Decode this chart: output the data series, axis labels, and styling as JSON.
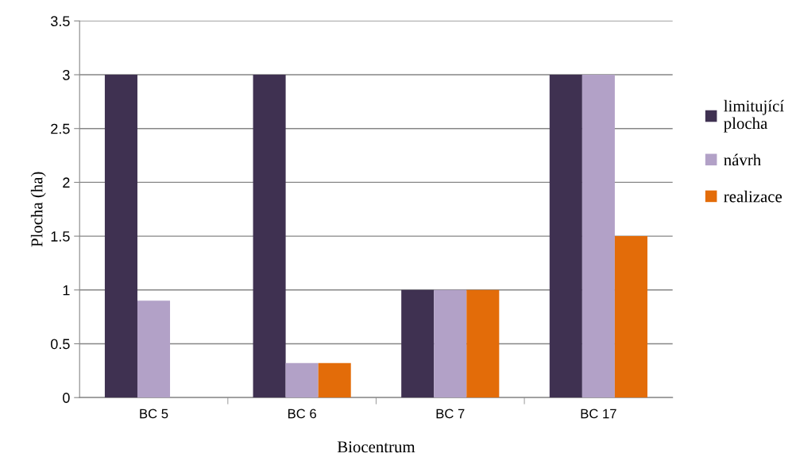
{
  "chart_data": {
    "type": "bar",
    "xlabel": "Biocentrum",
    "ylabel": "Plocha (ha)",
    "categories": [
      "BC 5",
      "BC 6",
      "BC 7",
      "BC 17"
    ],
    "series": [
      {
        "name": "limitující\nplocha",
        "color": "#3f3151",
        "values": [
          3,
          3,
          1,
          3
        ]
      },
      {
        "name": "návrh",
        "color": "#b2a1c7",
        "values": [
          0.9,
          0.32,
          1,
          3
        ]
      },
      {
        "name": "realizace",
        "color": "#e36c09",
        "values": [
          0,
          0.32,
          1,
          1.5
        ]
      }
    ],
    "ylim": [
      0,
      3.5
    ],
    "yticks": [
      0,
      0.5,
      1,
      1.5,
      2,
      2.5,
      3,
      3.5
    ],
    "grid": "y",
    "legend": "right"
  }
}
